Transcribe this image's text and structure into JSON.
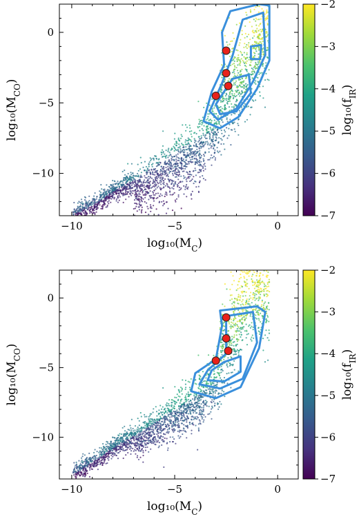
{
  "chart_data": [
    {
      "type": "scatter",
      "panel": "top",
      "xlabel": "log10(MC)",
      "ylabel": "log10(MCO)",
      "xlim": [
        -10.6,
        1.0
      ],
      "ylim": [
        -13.0,
        2.0
      ],
      "xticks": [
        -10,
        -5,
        0
      ],
      "yticks": [
        0,
        -5,
        -10
      ],
      "colorbar": {
        "label": "log10(fIR)",
        "range": [
          -7,
          -2
        ],
        "ticks": [
          -2,
          -3,
          -4,
          -5,
          -6,
          -7
        ],
        "colormap": "viridis"
      },
      "series": [
        {
          "kind": "scatter-cloud",
          "description_points": [
            [
              -10.0,
              -13.0
            ],
            [
              -9.0,
              -12.3
            ],
            [
              -8.0,
              -11.3
            ],
            [
              -7.0,
              -10.5
            ],
            [
              -6.0,
              -9.5
            ],
            [
              -5.0,
              -8.5
            ],
            [
              -4.0,
              -7.6
            ],
            [
              -3.0,
              -6.8
            ],
            [
              -2.0,
              -5.8
            ],
            [
              -1.0,
              -3.0
            ],
            [
              0.0,
              -1.0
            ]
          ]
        },
        {
          "kind": "markers",
          "color": "#e8221b",
          "points": [
            [
              -2.5,
              -1.3
            ],
            [
              -2.5,
              -2.9
            ],
            [
              -2.4,
              -3.8
            ],
            [
              -3.0,
              -4.5
            ]
          ]
        },
        {
          "kind": "contours",
          "color": "#3a8fdc",
          "levels": 3
        }
      ]
    },
    {
      "type": "scatter",
      "panel": "bottom",
      "xlabel": "log10(MC)",
      "ylabel": "log10(MCO)",
      "xlim": [
        -10.6,
        1.0
      ],
      "ylim": [
        -13.0,
        2.0
      ],
      "xticks": [
        -10,
        -5,
        0
      ],
      "yticks": [
        0,
        -5,
        -10
      ],
      "colorbar": {
        "label": "log10(fIR)",
        "range": [
          -7,
          -2
        ],
        "ticks": [
          -2,
          -3,
          -4,
          -5,
          -6,
          -7
        ],
        "colormap": "viridis"
      },
      "series": [
        {
          "kind": "scatter-cloud",
          "description_points": [
            [
              -10.0,
              -12.8
            ],
            [
              -9.0,
              -11.8
            ],
            [
              -8.0,
              -10.8
            ],
            [
              -7.0,
              -9.9
            ],
            [
              -6.0,
              -9.0
            ],
            [
              -5.0,
              -8.0
            ],
            [
              -4.0,
              -7.1
            ],
            [
              -3.0,
              -6.0
            ],
            [
              -2.0,
              -4.0
            ],
            [
              -1.5,
              -1.5
            ]
          ]
        },
        {
          "kind": "markers",
          "color": "#e8221b",
          "points": [
            [
              -2.5,
              -1.4
            ],
            [
              -2.5,
              -2.9
            ],
            [
              -2.4,
              -3.8
            ],
            [
              -3.0,
              -4.5
            ]
          ]
        },
        {
          "kind": "contours",
          "color": "#3a8fdc",
          "levels": 3
        }
      ]
    }
  ]
}
